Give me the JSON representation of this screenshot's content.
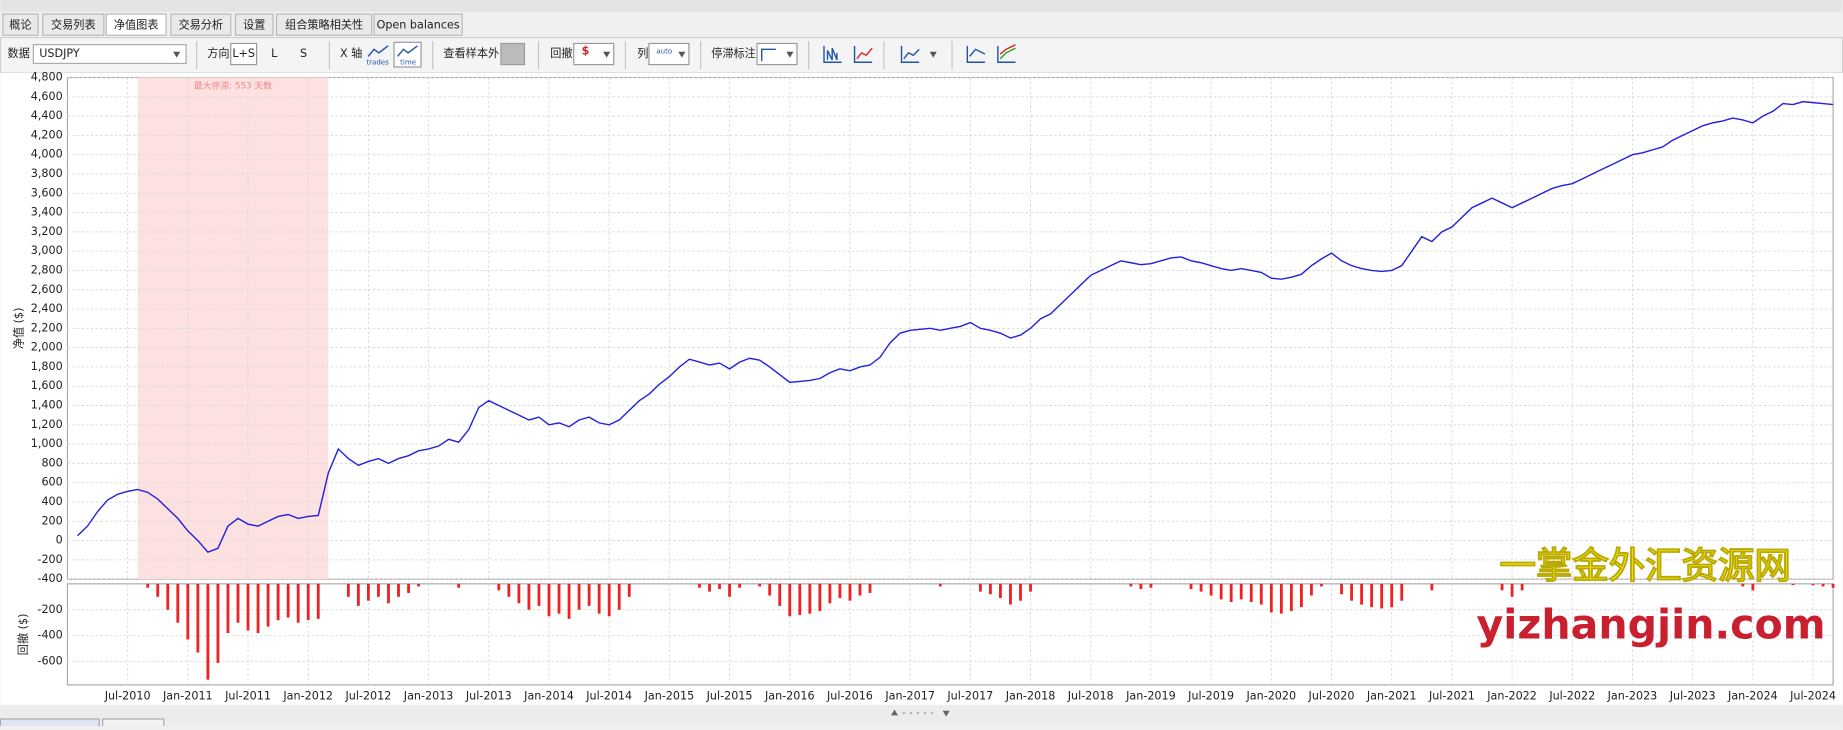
{
  "tabs": [
    "概论",
    "交易列表",
    "净值图表",
    "交易分析",
    "设置",
    "组合策略相关性",
    "Open balances"
  ],
  "toolbar": {
    "data_label": "数据",
    "symbol": "USDJPY",
    "direction_label": "方向",
    "direction_options": [
      "L+S",
      "L",
      "S"
    ],
    "x_axis_label": "X 轴",
    "x_axis_options": [
      "trades",
      "time"
    ],
    "out_of_sample_label": "查看样本外",
    "drawdown_label": "回撤",
    "drawdown_icon": "$",
    "columns_label": "列",
    "columns_icon": "auto",
    "stagnation_label": "停滞标注"
  },
  "watermark": {
    "cn": "一掌金外汇资源网",
    "url": "yizhangjin.com"
  },
  "chart_data": [
    {
      "type": "line",
      "y_label": "净值 ($)",
      "color": "#2222dd",
      "grid": true,
      "xlim": [
        "Jan-2010",
        "Sep-2024"
      ],
      "ylim": [
        -400,
        4800
      ],
      "yticks": [
        -400,
        -200,
        0,
        200,
        400,
        600,
        800,
        {
          "value": 1000,
          "label": "1,000"
        },
        {
          "value": 1200,
          "label": "1,200"
        },
        {
          "value": 1400,
          "label": "1,400"
        },
        {
          "value": 1600,
          "label": "1,600"
        },
        {
          "value": 1800,
          "label": "1,800"
        },
        {
          "value": 2000,
          "label": "2,000"
        },
        {
          "value": 2200,
          "label": "2,200"
        },
        {
          "value": 2400,
          "label": "2,400"
        },
        {
          "value": 2600,
          "label": "2,600"
        },
        {
          "value": 2800,
          "label": "2,800"
        },
        {
          "value": 3000,
          "label": "3,000"
        },
        {
          "value": 3200,
          "label": "3,200"
        },
        {
          "value": 3400,
          "label": "3,400"
        },
        {
          "value": 3600,
          "label": "3,600"
        },
        {
          "value": 3800,
          "label": "3,800"
        },
        {
          "value": 4000,
          "label": "4,000"
        },
        {
          "value": 4200,
          "label": "4,200"
        },
        {
          "value": 4400,
          "label": "4,400"
        },
        {
          "value": 4600,
          "label": "4,600"
        },
        {
          "value": 4800,
          "label": "4,800"
        }
      ],
      "highlight": {
        "from": "Aug-2010",
        "to": "Mar-2012",
        "label": "最大停滞: 553 天数",
        "color": "#fde0e0"
      },
      "x": [
        "Feb-2010",
        "Mar-2010",
        "Apr-2010",
        "May-2010",
        "Jun-2010",
        "Jul-2010",
        "Aug-2010",
        "Sep-2010",
        "Oct-2010",
        "Nov-2010",
        "Dec-2010",
        "Jan-2011",
        "Feb-2011",
        "Mar-2011",
        "Apr-2011",
        "May-2011",
        "Jun-2011",
        "Jul-2011",
        "Aug-2011",
        "Sep-2011",
        "Oct-2011",
        "Nov-2011",
        "Dec-2011",
        "Jan-2012",
        "Feb-2012",
        "Mar-2012",
        "Apr-2012",
        "May-2012",
        "Jun-2012",
        "Jul-2012",
        "Aug-2012",
        "Sep-2012",
        "Oct-2012",
        "Nov-2012",
        "Dec-2012",
        "Jan-2013",
        "Feb-2013",
        "Mar-2013",
        "Apr-2013",
        "May-2013",
        "Jun-2013",
        "Jul-2013",
        "Aug-2013",
        "Sep-2013",
        "Oct-2013",
        "Nov-2013",
        "Dec-2013",
        "Jan-2014",
        "Feb-2014",
        "Mar-2014",
        "Apr-2014",
        "May-2014",
        "Jun-2014",
        "Jul-2014",
        "Aug-2014",
        "Sep-2014",
        "Oct-2014",
        "Nov-2014",
        "Dec-2014",
        "Jan-2015",
        "Feb-2015",
        "Mar-2015",
        "Apr-2015",
        "May-2015",
        "Jun-2015",
        "Jul-2015",
        "Aug-2015",
        "Sep-2015",
        "Oct-2015",
        "Nov-2015",
        "Dec-2015",
        "Jan-2016",
        "Feb-2016",
        "Mar-2016",
        "Apr-2016",
        "May-2016",
        "Jun-2016",
        "Jul-2016",
        "Aug-2016",
        "Sep-2016",
        "Oct-2016",
        "Nov-2016",
        "Dec-2016",
        "Jan-2017",
        "Feb-2017",
        "Mar-2017",
        "Apr-2017",
        "May-2017",
        "Jun-2017",
        "Jul-2017",
        "Aug-2017",
        "Sep-2017",
        "Oct-2017",
        "Nov-2017",
        "Dec-2017",
        "Jan-2018",
        "Feb-2018",
        "Mar-2018",
        "Apr-2018",
        "May-2018",
        "Jun-2018",
        "Jul-2018",
        "Aug-2018",
        "Sep-2018",
        "Oct-2018",
        "Nov-2018",
        "Dec-2018",
        "Jan-2019",
        "Feb-2019",
        "Mar-2019",
        "Apr-2019",
        "May-2019",
        "Jun-2019",
        "Jul-2019",
        "Aug-2019",
        "Sep-2019",
        "Oct-2019",
        "Nov-2019",
        "Dec-2019",
        "Jan-2020",
        "Feb-2020",
        "Mar-2020",
        "Apr-2020",
        "May-2020",
        "Jun-2020",
        "Jul-2020",
        "Aug-2020",
        "Sep-2020",
        "Oct-2020",
        "Nov-2020",
        "Dec-2020",
        "Jan-2021",
        "Feb-2021",
        "Mar-2021",
        "Apr-2021",
        "May-2021",
        "Jun-2021",
        "Jul-2021",
        "Aug-2021",
        "Sep-2021",
        "Oct-2021",
        "Nov-2021",
        "Dec-2021",
        "Jan-2022",
        "Feb-2022",
        "Mar-2022",
        "Apr-2022",
        "May-2022",
        "Jun-2022",
        "Jul-2022",
        "Aug-2022",
        "Sep-2022",
        "Oct-2022",
        "Nov-2022",
        "Dec-2022",
        "Jan-2023",
        "Feb-2023",
        "Mar-2023",
        "Apr-2023",
        "May-2023",
        "Jun-2023",
        "Jul-2023",
        "Aug-2023",
        "Sep-2023",
        "Oct-2023",
        "Nov-2023",
        "Dec-2023",
        "Jan-2024",
        "Feb-2024",
        "Mar-2024",
        "Apr-2024",
        "May-2024",
        "Jun-2024",
        "Jul-2024",
        "Aug-2024",
        "Sep-2024"
      ],
      "values": [
        50,
        150,
        300,
        420,
        480,
        510,
        530,
        500,
        430,
        330,
        230,
        100,
        0,
        -120,
        -80,
        150,
        230,
        170,
        150,
        200,
        250,
        270,
        230,
        250,
        260,
        700,
        950,
        850,
        780,
        820,
        850,
        800,
        850,
        880,
        930,
        950,
        980,
        1050,
        1020,
        1150,
        1380,
        1450,
        1400,
        1350,
        1300,
        1250,
        1280,
        1200,
        1220,
        1180,
        1250,
        1280,
        1220,
        1200,
        1250,
        1350,
        1450,
        1520,
        1620,
        1700,
        1800,
        1880,
        1850,
        1820,
        1840,
        1780,
        1850,
        1890,
        1870,
        1800,
        1720,
        1640,
        1650,
        1660,
        1680,
        1740,
        1780,
        1760,
        1800,
        1820,
        1900,
        2050,
        2150,
        2180,
        2190,
        2200,
        2180,
        2200,
        2220,
        2260,
        2200,
        2180,
        2150,
        2100,
        2130,
        2200,
        2300,
        2350,
        2450,
        2550,
        2650,
        2750,
        2800,
        2850,
        2900,
        2880,
        2860,
        2870,
        2900,
        2930,
        2940,
        2900,
        2880,
        2850,
        2820,
        2800,
        2820,
        2800,
        2780,
        2720,
        2710,
        2730,
        2760,
        2850,
        2920,
        2980,
        2900,
        2850,
        2820,
        2800,
        2790,
        2800,
        2850,
        3000,
        3150,
        3100,
        3200,
        3250,
        3350,
        3450,
        3500,
        3550,
        3500,
        3450,
        3500,
        3550,
        3600,
        3650,
        3680,
        3700,
        3750,
        3800,
        3850,
        3900,
        3950,
        4000,
        4020,
        4050,
        4080,
        4150,
        4200,
        4250,
        4300,
        4330,
        4350,
        4380,
        4360,
        4330,
        4400,
        4450,
        4530,
        4520,
        4550,
        4540,
        4530,
        4520
      ]
    },
    {
      "type": "bar",
      "y_label": "回撤 ($)",
      "color": "#ee2222",
      "grid": true,
      "xlim": [
        "Jan-2010",
        "Sep-2024"
      ],
      "ylim": [
        -780,
        0
      ],
      "yticks": [
        -600,
        -400,
        -200
      ],
      "xticks": [
        "Jul-2010",
        "Jan-2011",
        "Jul-2011",
        "Jan-2012",
        "Jul-2012",
        "Jan-2013",
        "Jul-2013",
        "Jan-2014",
        "Jul-2014",
        "Jan-2015",
        "Jul-2015",
        "Jan-2016",
        "Jul-2016",
        "Jan-2017",
        "Jul-2017",
        "Jan-2018",
        "Jul-2018",
        "Jan-2019",
        "Jul-2019",
        "Jan-2020",
        "Jul-2020",
        "Jan-2021",
        "Jul-2021",
        "Jan-2022",
        "Jul-2022",
        "Jan-2023",
        "Jul-2023",
        "Jan-2024",
        "Jul-2024"
      ],
      "x": [
        "Feb-2010",
        "Mar-2010",
        "Apr-2010",
        "May-2010",
        "Jun-2010",
        "Jul-2010",
        "Aug-2010",
        "Sep-2010",
        "Oct-2010",
        "Nov-2010",
        "Dec-2010",
        "Jan-2011",
        "Feb-2011",
        "Mar-2011",
        "Apr-2011",
        "May-2011",
        "Jun-2011",
        "Jul-2011",
        "Aug-2011",
        "Sep-2011",
        "Oct-2011",
        "Nov-2011",
        "Dec-2011",
        "Jan-2012",
        "Feb-2012",
        "Mar-2012",
        "Apr-2012",
        "May-2012",
        "Jun-2012",
        "Jul-2012",
        "Aug-2012",
        "Sep-2012",
        "Oct-2012",
        "Nov-2012",
        "Dec-2012",
        "Jan-2013",
        "Feb-2013",
        "Mar-2013",
        "Apr-2013",
        "May-2013",
        "Jun-2013",
        "Jul-2013",
        "Aug-2013",
        "Sep-2013",
        "Oct-2013",
        "Nov-2013",
        "Dec-2013",
        "Jan-2014",
        "Feb-2014",
        "Mar-2014",
        "Apr-2014",
        "May-2014",
        "Jun-2014",
        "Jul-2014",
        "Aug-2014",
        "Sep-2014",
        "Oct-2014",
        "Nov-2014",
        "Dec-2014",
        "Jan-2015",
        "Feb-2015",
        "Mar-2015",
        "Apr-2015",
        "May-2015",
        "Jun-2015",
        "Jul-2015",
        "Aug-2015",
        "Sep-2015",
        "Oct-2015",
        "Nov-2015",
        "Dec-2015",
        "Jan-2016",
        "Feb-2016",
        "Mar-2016",
        "Apr-2016",
        "May-2016",
        "Jun-2016",
        "Jul-2016",
        "Aug-2016",
        "Sep-2016",
        "Oct-2016",
        "Nov-2016",
        "Dec-2016",
        "Jan-2017",
        "Feb-2017",
        "Mar-2017",
        "Apr-2017",
        "May-2017",
        "Jun-2017",
        "Jul-2017",
        "Aug-2017",
        "Sep-2017",
        "Oct-2017",
        "Nov-2017",
        "Dec-2017",
        "Jan-2018",
        "Feb-2018",
        "Mar-2018",
        "Apr-2018",
        "May-2018",
        "Jun-2018",
        "Jul-2018",
        "Aug-2018",
        "Sep-2018",
        "Oct-2018",
        "Nov-2018",
        "Dec-2018",
        "Jan-2019",
        "Feb-2019",
        "Mar-2019",
        "Apr-2019",
        "May-2019",
        "Jun-2019",
        "Jul-2019",
        "Aug-2019",
        "Sep-2019",
        "Oct-2019",
        "Nov-2019",
        "Dec-2019",
        "Jan-2020",
        "Feb-2020",
        "Mar-2020",
        "Apr-2020",
        "May-2020",
        "Jun-2020",
        "Jul-2020",
        "Aug-2020",
        "Sep-2020",
        "Oct-2020",
        "Nov-2020",
        "Dec-2020",
        "Jan-2021",
        "Feb-2021",
        "Mar-2021",
        "Apr-2021",
        "May-2021",
        "Jun-2021",
        "Jul-2021",
        "Aug-2021",
        "Sep-2021",
        "Oct-2021",
        "Nov-2021",
        "Dec-2021",
        "Jan-2022",
        "Feb-2022",
        "Mar-2022",
        "Apr-2022",
        "May-2022",
        "Jun-2022",
        "Jul-2022",
        "Aug-2022",
        "Sep-2022",
        "Oct-2022",
        "Nov-2022",
        "Dec-2022",
        "Jan-2023",
        "Feb-2023",
        "Mar-2023",
        "Apr-2023",
        "May-2023",
        "Jun-2023",
        "Jul-2023",
        "Aug-2023",
        "Sep-2023",
        "Oct-2023",
        "Nov-2023",
        "Dec-2023",
        "Jan-2024",
        "Feb-2024",
        "Mar-2024",
        "Apr-2024",
        "May-2024",
        "Jun-2024",
        "Jul-2024",
        "Aug-2024",
        "Sep-2024"
      ],
      "values": [
        0,
        0,
        0,
        0,
        0,
        0,
        0,
        -30,
        -100,
        -200,
        -300,
        -430,
        -530,
        -740,
        -610,
        -380,
        -300,
        -360,
        -380,
        -330,
        -280,
        -260,
        -300,
        -280,
        -270,
        0,
        0,
        -100,
        -170,
        -130,
        -100,
        -150,
        -100,
        -70,
        -20,
        0,
        0,
        0,
        -30,
        0,
        0,
        0,
        -50,
        -100,
        -150,
        -200,
        -170,
        -250,
        -230,
        -270,
        -200,
        -170,
        -230,
        -250,
        -200,
        -100,
        0,
        0,
        0,
        0,
        0,
        0,
        -30,
        -60,
        -40,
        -100,
        -30,
        0,
        -20,
        -90,
        -170,
        -250,
        -240,
        -230,
        -210,
        -150,
        -110,
        -130,
        -90,
        -70,
        0,
        0,
        0,
        0,
        0,
        0,
        -20,
        0,
        0,
        0,
        -60,
        -80,
        -110,
        -160,
        -130,
        -60,
        0,
        0,
        0,
        0,
        0,
        0,
        0,
        0,
        0,
        -20,
        -40,
        -30,
        0,
        0,
        0,
        -40,
        -60,
        -90,
        -120,
        -140,
        -120,
        -140,
        -160,
        -220,
        -230,
        -210,
        -180,
        -90,
        -20,
        0,
        -80,
        -130,
        -160,
        -180,
        -190,
        -180,
        -130,
        0,
        0,
        -50,
        0,
        0,
        0,
        0,
        0,
        0,
        -50,
        -100,
        -50,
        0,
        0,
        0,
        0,
        0,
        0,
        0,
        0,
        0,
        0,
        0,
        0,
        0,
        0,
        0,
        0,
        0,
        0,
        0,
        0,
        0,
        -20,
        -50,
        0,
        0,
        0,
        -10,
        0,
        -10,
        -20,
        -30
      ]
    }
  ]
}
